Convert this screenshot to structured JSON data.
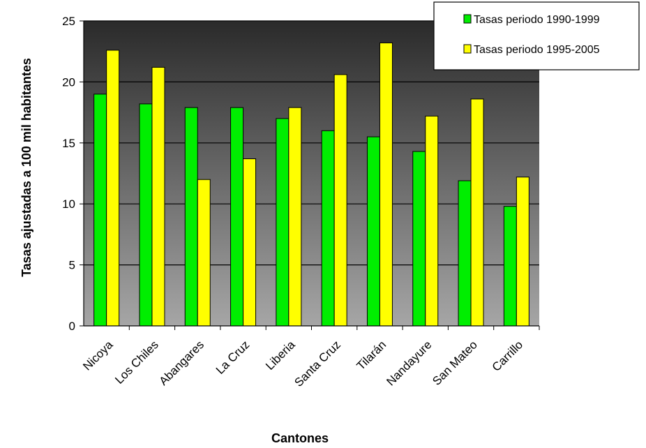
{
  "chart_data": {
    "type": "bar",
    "title": "",
    "xlabel": "Cantones",
    "ylabel": "Tasas ajustadas a 100 mil habitantes",
    "ylim": [
      0,
      25
    ],
    "yticks": [
      0,
      5,
      10,
      15,
      20,
      25
    ],
    "grid": true,
    "legend_position": "top-right",
    "categories": [
      "Nicoya",
      "Los Chiles",
      "Abangares",
      "La Cruz",
      "Liberia",
      "Santa Cruz",
      "Tilarán",
      "Nandayure",
      "San Mateo",
      "Carrillo"
    ],
    "series": [
      {
        "name": "Tasas periodo 1990-1999",
        "color": "#00ee00",
        "values": [
          19.0,
          18.2,
          17.9,
          17.9,
          17.0,
          16.0,
          15.5,
          14.3,
          11.9,
          9.8
        ]
      },
      {
        "name": "Tasas periodo 1995-2005",
        "color": "#ffff00",
        "values": [
          22.6,
          21.2,
          12.0,
          13.7,
          17.9,
          20.6,
          23.2,
          17.2,
          18.6,
          12.2
        ]
      }
    ]
  }
}
